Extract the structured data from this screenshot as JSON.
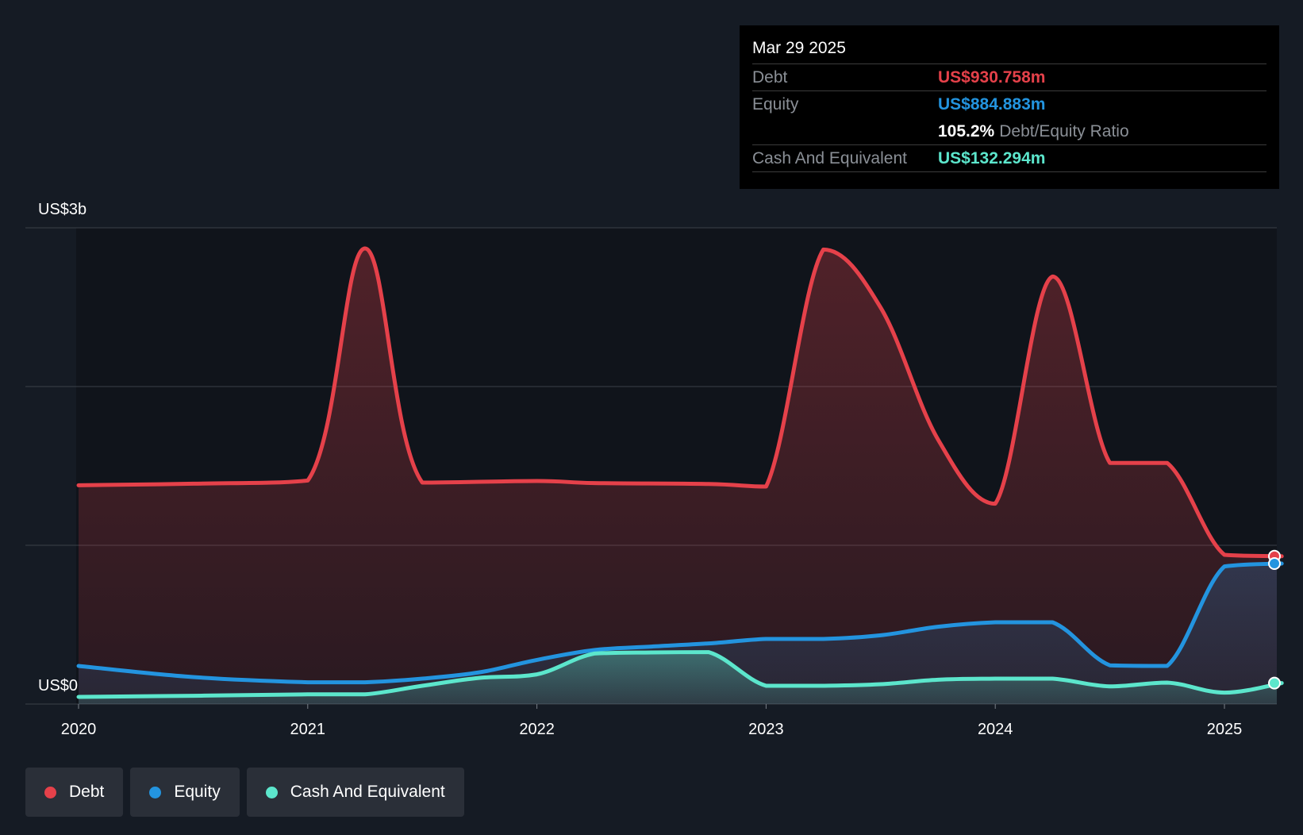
{
  "tooltip": {
    "date": "Mar 29 2025",
    "debt_label": "Debt",
    "debt_value": "US$930.758m",
    "equity_label": "Equity",
    "equity_value": "US$884.883m",
    "ratio_value": "105.2%",
    "ratio_label": "Debt/Equity Ratio",
    "cash_label": "Cash And Equivalent",
    "cash_value": "US$132.294m"
  },
  "legend": {
    "debt": "Debt",
    "equity": "Equity",
    "cash": "Cash And Equivalent"
  },
  "colors": {
    "debt": "#e5414a",
    "equity": "#2394df",
    "cash": "#5ce6cc",
    "background": "#151b24",
    "tooltip_bg": "#000000"
  },
  "chart_data": {
    "type": "area",
    "y_label_top": "US$3b",
    "y_label_bottom": "US$0",
    "ylim": [
      0,
      3000
    ],
    "xlim": [
      2020.0,
      2025.25
    ],
    "x_ticks": [
      2020,
      2021,
      2022,
      2023,
      2024,
      2025
    ],
    "x_tick_labels": [
      "2020",
      "2021",
      "2022",
      "2023",
      "2024",
      "2025"
    ],
    "grid": true,
    "legend_position": "bottom-left",
    "unit": "US$ millions",
    "series": [
      {
        "name": "Debt",
        "points": [
          [
            2020.0,
            1378
          ],
          [
            2020.5,
            1388
          ],
          [
            2021.0,
            1408
          ],
          [
            2021.25,
            2870
          ],
          [
            2021.5,
            1395
          ],
          [
            2022.0,
            1405
          ],
          [
            2022.25,
            1392
          ],
          [
            2022.75,
            1386
          ],
          [
            2023.0,
            1370
          ],
          [
            2023.25,
            2863
          ],
          [
            2023.5,
            2497
          ],
          [
            2023.75,
            1667
          ],
          [
            2024.0,
            1262
          ],
          [
            2024.25,
            2693
          ],
          [
            2024.5,
            1519
          ],
          [
            2024.75,
            1519
          ],
          [
            2025.0,
            940
          ],
          [
            2025.25,
            931
          ]
        ]
      },
      {
        "name": "Equity",
        "points": [
          [
            2020.0,
            240
          ],
          [
            2020.5,
            170
          ],
          [
            2021.0,
            137
          ],
          [
            2021.25,
            137
          ],
          [
            2021.5,
            160
          ],
          [
            2021.75,
            200
          ],
          [
            2022.0,
            278
          ],
          [
            2022.25,
            340
          ],
          [
            2022.5,
            362
          ],
          [
            2022.75,
            382
          ],
          [
            2023.0,
            410
          ],
          [
            2023.25,
            410
          ],
          [
            2023.5,
            433
          ],
          [
            2023.75,
            487
          ],
          [
            2024.0,
            515
          ],
          [
            2024.25,
            515
          ],
          [
            2024.5,
            244
          ],
          [
            2024.75,
            240
          ],
          [
            2025.0,
            867
          ],
          [
            2025.25,
            885
          ]
        ]
      },
      {
        "name": "Cash And Equivalent",
        "points": [
          [
            2020.0,
            45
          ],
          [
            2020.5,
            52
          ],
          [
            2021.0,
            61
          ],
          [
            2021.25,
            61
          ],
          [
            2021.5,
            115
          ],
          [
            2021.75,
            165
          ],
          [
            2022.0,
            187
          ],
          [
            2022.25,
            318
          ],
          [
            2022.5,
            325
          ],
          [
            2022.75,
            327
          ],
          [
            2023.0,
            115
          ],
          [
            2023.25,
            115
          ],
          [
            2023.5,
            125
          ],
          [
            2023.75,
            153
          ],
          [
            2024.0,
            160
          ],
          [
            2024.25,
            160
          ],
          [
            2024.5,
            111
          ],
          [
            2024.75,
            135
          ],
          [
            2025.0,
            72
          ],
          [
            2025.25,
            132
          ]
        ]
      }
    ]
  }
}
